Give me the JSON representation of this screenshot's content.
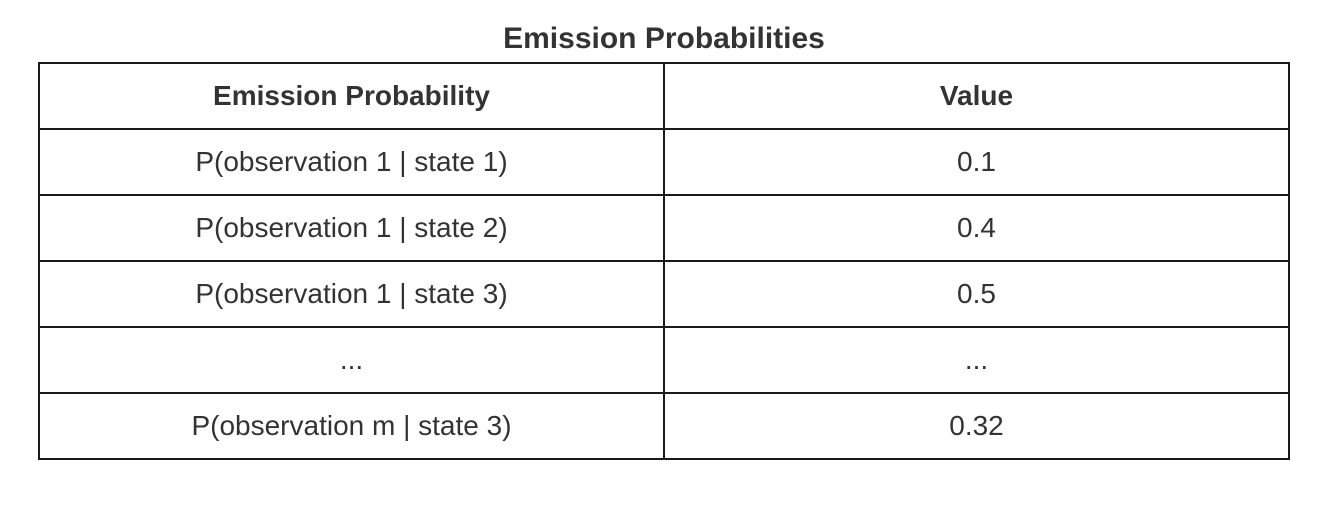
{
  "title": "Emission Probabilities",
  "table": {
    "headers": [
      "Emission Probability",
      "Value"
    ],
    "rows": [
      [
        "P(observation 1 | state 1)",
        "0.1"
      ],
      [
        "P(observation 1 | state 2)",
        "0.4"
      ],
      [
        "P(observation 1 | state 3)",
        "0.5"
      ],
      [
        "...",
        "..."
      ],
      [
        "P(observation m | state 3)",
        "0.32"
      ]
    ]
  }
}
